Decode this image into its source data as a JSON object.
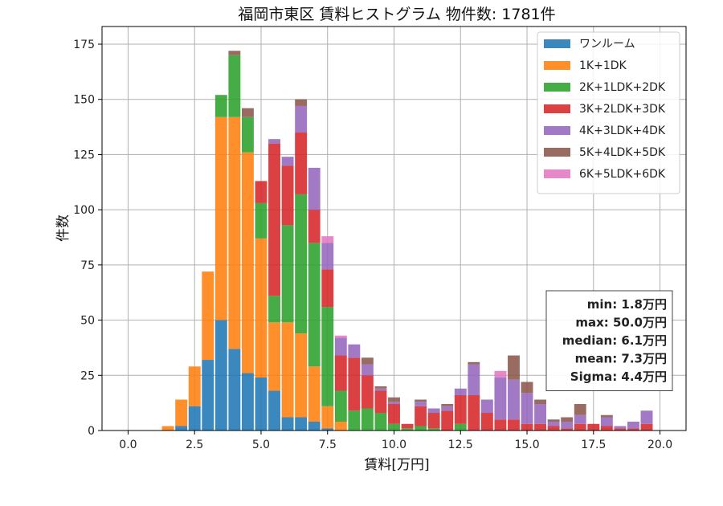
{
  "chart_data": {
    "type": "bar",
    "stacked": true,
    "title": "福岡市東区 賃料ヒストグラム 物件数: 1781件",
    "xlabel": "賃料[万円]",
    "ylabel": "件数",
    "xlim": [
      -0.98,
      20.98
    ],
    "ylim": [
      0,
      183
    ],
    "xticks": [
      0.0,
      2.5,
      5.0,
      7.5,
      10.0,
      12.5,
      15.0,
      17.5,
      20.0
    ],
    "xtick_labels": [
      "0.0",
      "2.5",
      "5.0",
      "7.5",
      "10.0",
      "12.5",
      "15.0",
      "17.5",
      "20.0"
    ],
    "yticks": [
      0,
      25,
      50,
      75,
      100,
      125,
      150,
      175
    ],
    "ytick_labels": [
      "0",
      "25",
      "50",
      "75",
      "100",
      "125",
      "150",
      "175"
    ],
    "grid": true,
    "legend_position": "top-right",
    "bin_width": 0.5,
    "bar_width": 0.45,
    "x": [
      1.5,
      2.0,
      2.5,
      3.0,
      3.5,
      4.0,
      4.5,
      5.0,
      5.5,
      6.0,
      6.5,
      7.0,
      7.5,
      8.0,
      8.5,
      9.0,
      9.5,
      10.0,
      10.5,
      11.0,
      11.5,
      12.0,
      12.5,
      13.0,
      13.5,
      14.0,
      14.5,
      15.0,
      15.5,
      16.0,
      16.5,
      17.0,
      17.5,
      18.0,
      18.5,
      19.0,
      19.5
    ],
    "series": [
      {
        "name": "ワンルーム",
        "color": "#1f77b4",
        "values": [
          0,
          2,
          11,
          32,
          50,
          37,
          26,
          24,
          18,
          6,
          6,
          4,
          1,
          0,
          0,
          0,
          0,
          0,
          0,
          0,
          0,
          0,
          0,
          0,
          0,
          0,
          0,
          0,
          0,
          0,
          0,
          0,
          0,
          0,
          0,
          0,
          0
        ]
      },
      {
        "name": "1K+1DK",
        "color": "#ff7f0e",
        "values": [
          2,
          12,
          18,
          40,
          92,
          105,
          100,
          63,
          31,
          43,
          38,
          25,
          10,
          4,
          0,
          0,
          0,
          0,
          0,
          0,
          0,
          0,
          0,
          0,
          0,
          0,
          0,
          0,
          0,
          0,
          0,
          0,
          0,
          0,
          0,
          0,
          0
        ]
      },
      {
        "name": "2K+1LDK+2DK",
        "color": "#2ca02c",
        "values": [
          0,
          0,
          0,
          0,
          10,
          28,
          16,
          16,
          12,
          44,
          63,
          56,
          45,
          14,
          9,
          10,
          8,
          3,
          1,
          2,
          1,
          0,
          3,
          0,
          0,
          0,
          0,
          0,
          0,
          0,
          0,
          0,
          0,
          0,
          0,
          0,
          0
        ]
      },
      {
        "name": "3K+2LDK+3DK",
        "color": "#d62728",
        "values": [
          0,
          0,
          0,
          0,
          0,
          0,
          0,
          10,
          69,
          27,
          28,
          15,
          17,
          16,
          24,
          15,
          10,
          9,
          2,
          9,
          7,
          9,
          13,
          16,
          8,
          5,
          5,
          3,
          3,
          2,
          1,
          3,
          3,
          2,
          1,
          1,
          3
        ]
      },
      {
        "name": "4K+3LDK+4DK",
        "color": "#9467bd",
        "values": [
          0,
          0,
          0,
          0,
          0,
          0,
          0,
          0,
          2,
          4,
          12,
          19,
          12,
          8,
          6,
          5,
          1,
          1,
          0,
          2,
          2,
          2,
          3,
          14,
          6,
          19,
          18,
          14,
          9,
          2,
          3,
          4,
          0,
          4,
          1,
          3,
          6
        ]
      },
      {
        "name": "5K+4LDK+5DK",
        "color": "#8c564b",
        "values": [
          0,
          0,
          0,
          0,
          0,
          2,
          4,
          0,
          0,
          0,
          3,
          0,
          0,
          0,
          0,
          3,
          1,
          2,
          0,
          1,
          0,
          1,
          0,
          1,
          0,
          0,
          11,
          5,
          2,
          1,
          2,
          5,
          0,
          1,
          0,
          0,
          0
        ]
      },
      {
        "name": "6K+5LDK+6DK",
        "color": "#e377c2",
        "values": [
          0,
          0,
          0,
          0,
          0,
          0,
          0,
          0,
          0,
          0,
          0,
          0,
          3,
          1,
          0,
          0,
          0,
          0,
          0,
          0,
          0,
          0,
          0,
          0,
          0,
          3,
          0,
          0,
          0,
          0,
          0,
          0,
          0,
          0,
          0,
          0,
          0
        ]
      }
    ],
    "bar_alpha": 0.88,
    "stats": [
      "min: 1.8万円",
      "max: 50.0万円",
      "median: 6.1万円",
      "mean: 7.3万円",
      "Sigma: 4.4万円"
    ]
  }
}
